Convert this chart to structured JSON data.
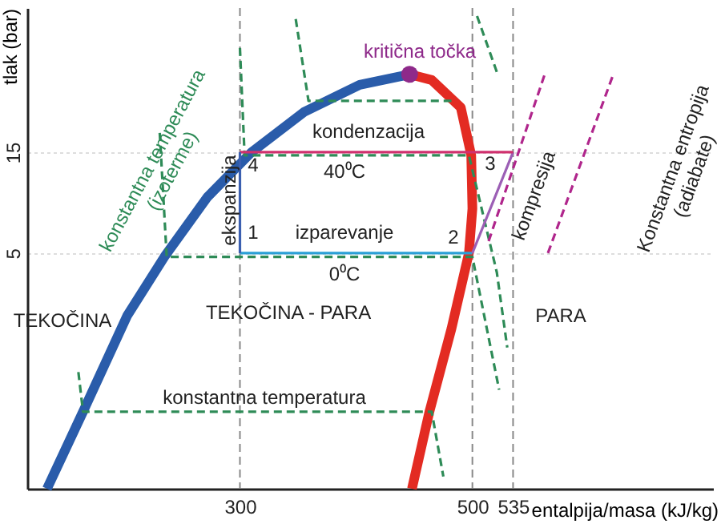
{
  "chart_data": {
    "type": "line",
    "xlabel": "entalpija/masa  (kJ/kg)",
    "ylabel": "tlak (bar)",
    "xlim": [
      117,
      707
    ],
    "ylim": [
      0.385,
      72
    ],
    "xticks": [
      300,
      500,
      535
    ],
    "yticks": [
      5,
      15
    ],
    "log": "y",
    "grid": "y",
    "series": [
      {
        "type": "line",
        "color": "#2a5caa",
        "line_style": "solid",
        "x": [
          134,
          165,
          203,
          235,
          272,
          310,
          355,
          403,
          446
        ],
        "values": [
          0.385,
          0.89,
          2.53,
          4.8,
          9.2,
          15,
          23.2,
          31.2,
          35
        ]
      },
      {
        "type": "line",
        "color": "#e32b22",
        "line_style": "solid",
        "x": [
          446,
          465,
          490,
          499,
          500,
          497,
          482,
          463,
          448
        ],
        "values": [
          35,
          32.9,
          24.4,
          14.5,
          8.1,
          5,
          2.2,
          0.89,
          0.385
        ]
      },
      {
        "type": "line",
        "color": "#2e8b57",
        "line_style": "dashed",
        "x": [
          348,
          359,
          482
        ],
        "values": [
          63.8,
          26.2,
          26.2
        ]
      },
      {
        "type": "line",
        "color": "#2e8b57",
        "line_style": "dashed",
        "x": [
          504,
          521
        ],
        "values": [
          66,
          35.9
        ]
      },
      {
        "type": "line",
        "color": "#2e8b57",
        "line_style": "dashed",
        "x": [
          300,
          304,
          497,
          521,
          530
        ],
        "values": [
          46.6,
          14.5,
          14.5,
          4.06,
          1.79
        ]
      },
      {
        "type": "line",
        "color": "#2e8b57",
        "line_style": "dashed",
        "x": [
          231,
          237,
          500,
          523
        ],
        "values": [
          18.5,
          4.8,
          4.8,
          1.13
        ]
      },
      {
        "type": "line",
        "color": "#2e8b57",
        "line_style": "dashed",
        "x": [
          161,
          165,
          465,
          475
        ],
        "values": [
          1.37,
          0.89,
          0.89,
          0.44
        ]
      },
      {
        "type": "line",
        "color": "#b0268c",
        "line_style": "dashed",
        "x": [
          514,
          562
        ],
        "values": [
          5.7,
          34.7
        ]
      },
      {
        "type": "line",
        "color": "#b0268c",
        "line_style": "dashed",
        "x": [
          565,
          621
        ],
        "values": [
          5,
          34.7
        ]
      },
      {
        "type": "line",
        "color": "#2a9fd6",
        "line_style": "solid",
        "x": [
          300,
          500
        ],
        "values": [
          5,
          5
        ]
      },
      {
        "type": "line",
        "color": "#9c5fb5",
        "line_style": "solid",
        "x": [
          500,
          535
        ],
        "values": [
          5,
          15
        ]
      },
      {
        "type": "line",
        "color": "#d0306e",
        "line_style": "solid",
        "x": [
          535,
          300
        ],
        "values": [
          15,
          15
        ]
      },
      {
        "type": "line",
        "color": "#3b5fb0",
        "line_style": "solid",
        "x": [
          300,
          300
        ],
        "values": [
          15,
          5
        ]
      },
      {
        "type": "scatter",
        "color": "#8e2a8a",
        "marker": "circle",
        "x": [
          446
        ],
        "values": [
          35
        ]
      }
    ],
    "ref_lines": [
      {
        "axis": "x",
        "value": 300,
        "color": "#888888",
        "line_style": "dashed"
      },
      {
        "axis": "x",
        "value": 500,
        "color": "#888888",
        "line_style": "dashed"
      },
      {
        "axis": "x",
        "value": 535,
        "color": "#888888",
        "line_style": "dashed"
      }
    ],
    "annotations": [
      "kritična točka",
      "kondenzacija",
      "40⁰C",
      "izparevanje",
      "0⁰C",
      "1",
      "2",
      "3",
      "4",
      "ekspanzija",
      "kompresija",
      "konstantna temperatura",
      "TEKOČINA",
      "TEKOČINA - PARA",
      "PARA",
      "konstantna temperatura\n(izoterme)",
      "Konstantna entropija\n(adiabate)"
    ]
  }
}
